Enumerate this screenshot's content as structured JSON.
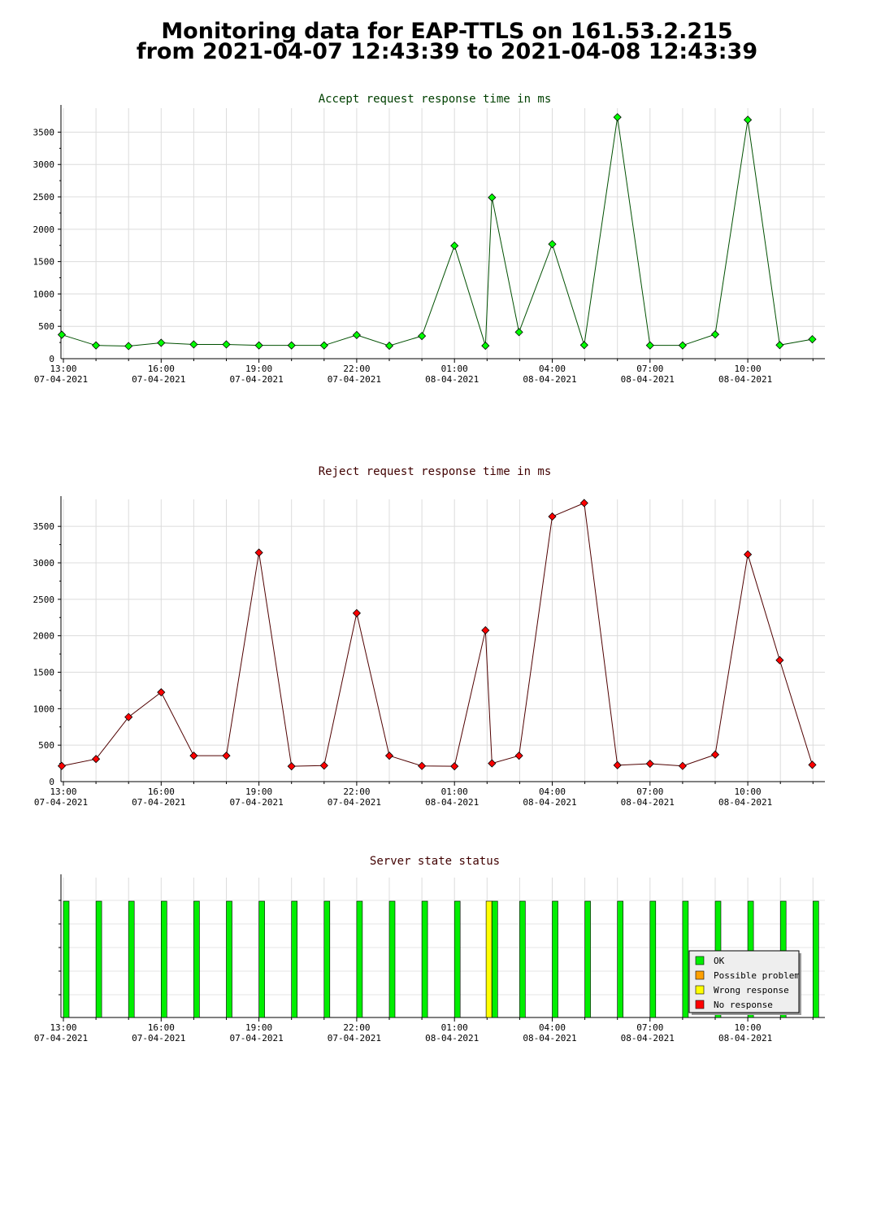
{
  "header": {
    "title_line1": "Monitoring data for EAP-TTLS on 161.53.2.215",
    "title_line2": "from 2021-04-07 12:43:39 to 2021-04-08 12:43:39"
  },
  "chart_data": [
    {
      "type": "line",
      "title": "Accept request response time in ms",
      "title_color": "#004000",
      "line_color": "#005000",
      "marker_color": "#00ff00",
      "ylim": [
        0,
        3870
      ],
      "yticks": [
        500,
        1000,
        1500,
        2000,
        2500,
        3000,
        3500
      ],
      "x_ticks": [
        {
          "time": "13:00",
          "date": "07-04-2021",
          "hour": 0
        },
        {
          "time": "16:00",
          "date": "07-04-2021",
          "hour": 3
        },
        {
          "time": "19:00",
          "date": "07-04-2021",
          "hour": 6
        },
        {
          "time": "22:00",
          "date": "07-04-2021",
          "hour": 9
        },
        {
          "time": "01:00",
          "date": "08-04-2021",
          "hour": 12
        },
        {
          "time": "04:00",
          "date": "08-04-2021",
          "hour": 15
        },
        {
          "time": "07:00",
          "date": "08-04-2021",
          "hour": 18
        },
        {
          "time": "10:00",
          "date": "08-04-2021",
          "hour": 21
        }
      ],
      "x": [
        -0.05,
        1,
        2,
        3,
        4,
        5,
        6,
        7,
        8,
        9,
        10,
        11,
        12,
        12.95,
        13.15,
        13.98,
        15,
        15.98,
        17,
        18,
        19,
        20,
        21,
        21.98,
        22.98
      ],
      "values": [
        370,
        205,
        195,
        245,
        220,
        220,
        205,
        205,
        205,
        365,
        200,
        350,
        1745,
        200,
        2490,
        410,
        1770,
        210,
        3730,
        205,
        205,
        375,
        3690,
        210,
        300
      ]
    },
    {
      "type": "line",
      "title": "Reject request response time in ms",
      "title_color": "#400000",
      "line_color": "#500000",
      "marker_color": "#ff0000",
      "ylim": [
        0,
        3870
      ],
      "yticks": [
        500,
        1000,
        1500,
        2000,
        2500,
        3000,
        3500
      ],
      "x_ticks": [
        {
          "time": "13:00",
          "date": "07-04-2021",
          "hour": 0
        },
        {
          "time": "16:00",
          "date": "07-04-2021",
          "hour": 3
        },
        {
          "time": "19:00",
          "date": "07-04-2021",
          "hour": 6
        },
        {
          "time": "22:00",
          "date": "07-04-2021",
          "hour": 9
        },
        {
          "time": "01:00",
          "date": "08-04-2021",
          "hour": 12
        },
        {
          "time": "04:00",
          "date": "08-04-2021",
          "hour": 15
        },
        {
          "time": "07:00",
          "date": "08-04-2021",
          "hour": 18
        },
        {
          "time": "10:00",
          "date": "08-04-2021",
          "hour": 21
        }
      ],
      "x": [
        -0.05,
        1,
        2,
        3,
        4,
        5,
        6,
        7,
        8,
        9,
        10,
        11,
        12,
        12.95,
        13.15,
        13.98,
        15,
        15.98,
        17,
        18,
        19,
        20,
        21,
        21.98,
        22.98
      ],
      "values": [
        215,
        310,
        885,
        1225,
        355,
        355,
        3140,
        210,
        220,
        2310,
        355,
        215,
        210,
        2075,
        250,
        355,
        3635,
        3820,
        225,
        245,
        215,
        370,
        3115,
        1665,
        230
      ]
    },
    {
      "type": "bar",
      "title": "Server state status",
      "title_color": "#400000",
      "x_ticks": [
        {
          "time": "13:00",
          "date": "07-04-2021",
          "hour": 0
        },
        {
          "time": "16:00",
          "date": "07-04-2021",
          "hour": 3
        },
        {
          "time": "19:00",
          "date": "07-04-2021",
          "hour": 6
        },
        {
          "time": "22:00",
          "date": "07-04-2021",
          "hour": 9
        },
        {
          "time": "01:00",
          "date": "08-04-2021",
          "hour": 12
        },
        {
          "time": "04:00",
          "date": "08-04-2021",
          "hour": 15
        },
        {
          "time": "07:00",
          "date": "08-04-2021",
          "hour": 18
        },
        {
          "time": "10:00",
          "date": "08-04-2021",
          "hour": 21
        }
      ],
      "x": [
        0,
        1,
        2,
        3,
        4,
        5,
        6,
        7,
        8,
        9,
        10,
        11,
        12,
        12.97,
        13.15,
        14,
        15,
        16,
        17,
        18,
        19,
        20,
        21,
        22,
        23
      ],
      "status": [
        "OK",
        "OK",
        "OK",
        "OK",
        "OK",
        "OK",
        "OK",
        "OK",
        "OK",
        "OK",
        "OK",
        "OK",
        "OK",
        "Wrong response",
        "OK",
        "OK",
        "OK",
        "OK",
        "OK",
        "OK",
        "OK",
        "OK",
        "OK",
        "OK",
        "OK"
      ],
      "legend_position": "bottom-right",
      "legend": [
        {
          "label": "OK",
          "color": "#00ee00"
        },
        {
          "label": "Possible problem",
          "color": "#ffa000"
        },
        {
          "label": "Wrong response",
          "color": "#ffff00"
        },
        {
          "label": "No response",
          "color": "#ff0000"
        }
      ]
    }
  ]
}
